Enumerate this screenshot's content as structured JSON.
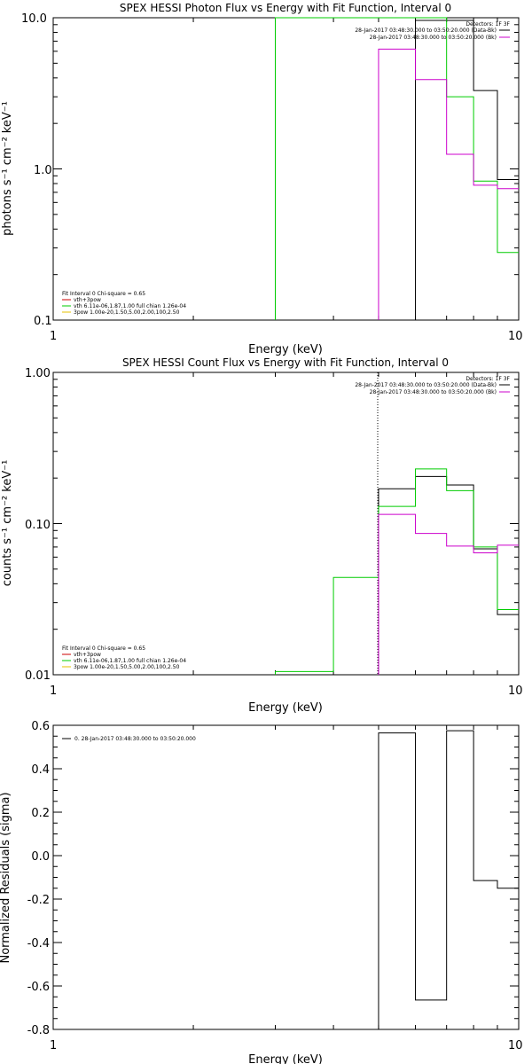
{
  "chart_data": [
    {
      "type": "line",
      "title": "SPEX HESSI Photon Flux vs Energy with Fit Function, Interval 0",
      "xlabel": "Energy (keV)",
      "ylabel": "photons s⁻¹ cm⁻² keV⁻¹",
      "xscale": "log",
      "yscale": "log",
      "xlim": [
        1,
        10
      ],
      "ylim": [
        0.1,
        10
      ],
      "xticks": [
        "1",
        "10"
      ],
      "yticks": [
        "0.1",
        "1.0",
        "10.0"
      ],
      "legend_top": {
        "header": "Detectors: 1F 3F",
        "entries": [
          {
            "label": "28-Jan-2017 03:48:30.000 to 03:50:20.000 (Data-Bk)",
            "color": "#000000"
          },
          {
            "label": "28-Jan-2017 03:48:30.000 to 03:50:20.000 (Bk)",
            "color": "#cc00cc"
          }
        ]
      },
      "legend_bottom": {
        "header": "Fit Interval 0   Chi-square = 0.65",
        "entries": [
          {
            "label": "vth+3pow",
            "color": "#cc0000"
          },
          {
            "label": "vth 6.11e-06,1.87,1.00  full chian 1.26e-04",
            "color": "#00cc00"
          },
          {
            "label": "3pow 1.00e-20,1.50,5.00,2.00,100,2.50",
            "color": "#e6c000"
          }
        ]
      },
      "series": [
        {
          "color": "#000000",
          "x": [
            6,
            7,
            8,
            9,
            10
          ],
          "values": [
            9.6,
            9.6,
            3.3,
            0.85,
            0.26
          ]
        },
        {
          "color": "#00cc00",
          "x": [
            3,
            4,
            5,
            6,
            7,
            8,
            9,
            10
          ],
          "values": [
            11,
            11,
            11,
            11,
            3.0,
            0.83,
            0.28,
            0.28
          ]
        },
        {
          "color": "#cc00cc",
          "x": [
            5,
            6,
            7,
            8,
            9,
            10
          ],
          "values": [
            6.2,
            3.9,
            1.25,
            0.78,
            0.74,
            0.74
          ]
        }
      ]
    },
    {
      "type": "line",
      "title": "SPEX HESSI Count Flux vs Energy with Fit Function, Interval 0",
      "xlabel": "Energy (keV)",
      "ylabel": "counts s⁻¹ cm⁻² keV⁻¹",
      "xscale": "log",
      "yscale": "log",
      "xlim": [
        1,
        10
      ],
      "ylim": [
        0.01,
        1
      ],
      "xticks": [
        "1",
        "10"
      ],
      "yticks": [
        "0.01",
        "0.10",
        "1.00"
      ],
      "legend_top": {
        "header": "Detectors: 1F 3F",
        "entries": [
          {
            "label": "28-Jan-2017 03:48:30.000 to 03:50:20.000 (Data-Bk)",
            "color": "#000000"
          },
          {
            "label": "28-Jan-2017 03:48:30.000 to 03:50:20.000 (Bk)",
            "color": "#cc00cc"
          }
        ]
      },
      "legend_bottom": {
        "header": "Fit Interval 0   Chi-square = 0.65",
        "entries": [
          {
            "label": "vth+3pow",
            "color": "#cc0000"
          },
          {
            "label": "vth 6.11e-06,1.87,1.00  full chian 1.26e-04",
            "color": "#00cc00"
          },
          {
            "label": "3pow 1.00e-20,1.50,5.00,2.00,100,2.50",
            "color": "#e6c000"
          }
        ]
      },
      "series": [
        {
          "color": "#000000",
          "x": [
            5,
            6,
            7,
            8,
            9,
            10
          ],
          "values": [
            0.17,
            0.205,
            0.18,
            0.068,
            0.025,
            0.025
          ]
        },
        {
          "color": "#00cc00",
          "x": [
            3,
            4,
            5,
            6,
            7,
            8,
            9,
            10
          ],
          "values": [
            0.0105,
            0.044,
            0.13,
            0.23,
            0.165,
            0.07,
            0.027,
            0.027
          ]
        },
        {
          "color": "#cc00cc",
          "x": [
            5,
            6,
            7,
            8,
            9,
            10
          ],
          "values": [
            0.115,
            0.086,
            0.071,
            0.064,
            0.072,
            0.072
          ]
        }
      ]
    },
    {
      "type": "line",
      "title": "",
      "xlabel": "Energy (keV)",
      "ylabel": "Normalized Residuals (sigma)",
      "xscale": "log",
      "yscale": "linear",
      "xlim": [
        1,
        10
      ],
      "ylim": [
        -0.8,
        0.6
      ],
      "xticks": [
        "1",
        "10"
      ],
      "yticks": [
        "-0.8",
        "-0.6",
        "-0.4",
        "-0.2",
        "0.0",
        "0.2",
        "0.4",
        "0.6"
      ],
      "legend": {
        "entries": [
          {
            "label": "0. 28-Jan-2017 03:48:30.000 to 03:50:20.000",
            "color": "#000000"
          }
        ]
      },
      "series": [
        {
          "color": "#000000",
          "x": [
            5,
            6,
            7,
            8,
            9,
            10
          ],
          "values": [
            0.565,
            -0.665,
            0.575,
            -0.115,
            -0.15,
            -0.15
          ]
        }
      ]
    }
  ]
}
